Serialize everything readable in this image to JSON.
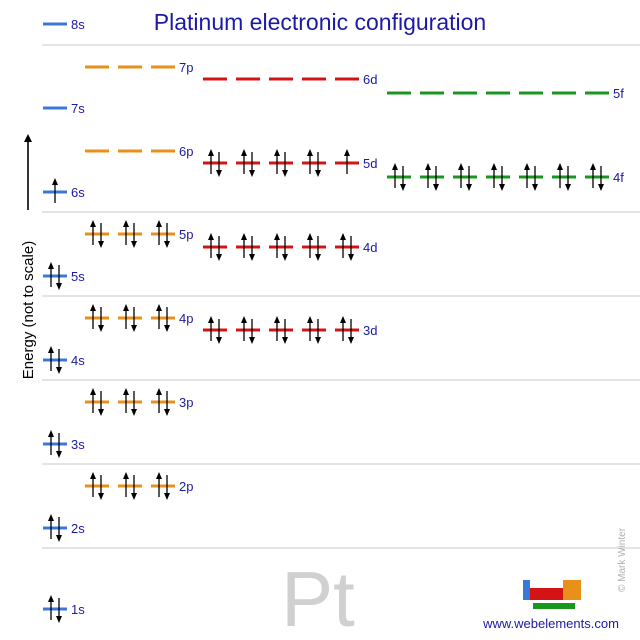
{
  "title": "Platinum electronic configuration",
  "element_symbol": "Pt",
  "y_axis_label": "Energy (not to scale)",
  "website": "www.webelements.com",
  "credit": "© Mark Winter",
  "colors": {
    "s": "#3a78d8",
    "p": "#e8901a",
    "d": "#d41414",
    "f": "#18961e",
    "text": "#1a1aa6",
    "separator": "#c8c8c8"
  },
  "subshells": [
    {
      "label": "1s",
      "electrons": 2
    },
    {
      "label": "2s",
      "electrons": 2
    },
    {
      "label": "2p",
      "electrons": 6
    },
    {
      "label": "3s",
      "electrons": 2
    },
    {
      "label": "3p",
      "electrons": 6
    },
    {
      "label": "4s",
      "electrons": 2
    },
    {
      "label": "3d",
      "electrons": 10
    },
    {
      "label": "4p",
      "electrons": 6
    },
    {
      "label": "5s",
      "electrons": 2
    },
    {
      "label": "4d",
      "electrons": 10
    },
    {
      "label": "5p",
      "electrons": 6
    },
    {
      "label": "6s",
      "electrons": 1
    },
    {
      "label": "4f",
      "electrons": 14
    },
    {
      "label": "5d",
      "electrons": 9
    },
    {
      "label": "6p",
      "electrons": 0
    },
    {
      "label": "7s",
      "electrons": 0
    },
    {
      "label": "5f",
      "electrons": 0
    },
    {
      "label": "6d",
      "electrons": 0
    },
    {
      "label": "7p",
      "electrons": 0
    },
    {
      "label": "8s",
      "electrons": 0
    }
  ]
}
